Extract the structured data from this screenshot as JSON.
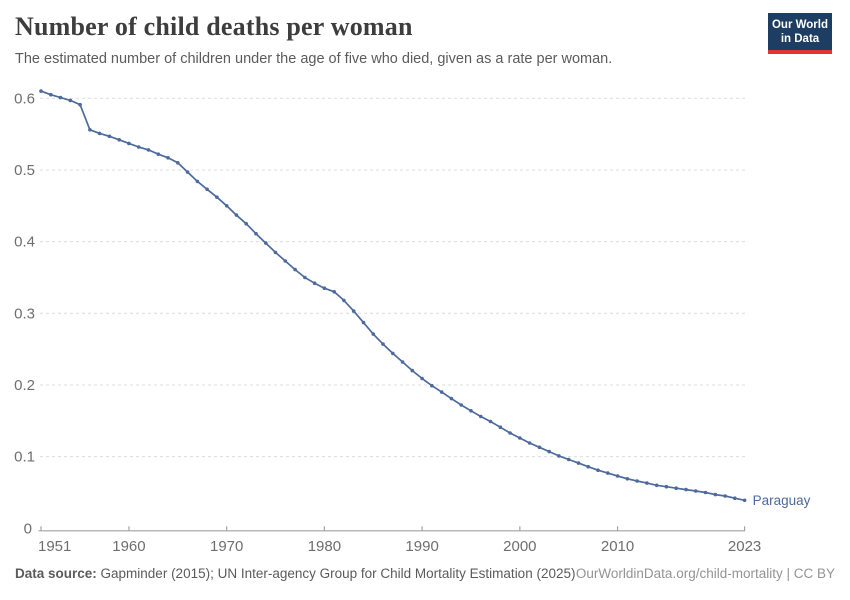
{
  "header": {
    "title": "Number of child deaths per woman",
    "subtitle": "The estimated number of children under the age of five who died, given as a rate per woman.",
    "logo": {
      "line1": "Our World",
      "line2": "in Data",
      "bg_color": "#1d3d63",
      "accent_color": "#e0362f"
    }
  },
  "chart_data": {
    "type": "line",
    "title": "Number of child deaths per woman",
    "xlabel": "",
    "ylabel": "",
    "xlim": [
      1951,
      2023
    ],
    "ylim": [
      0,
      0.6
    ],
    "x_ticks": [
      1951,
      1960,
      1970,
      1980,
      1990,
      2000,
      2010,
      2023
    ],
    "y_ticks": [
      0,
      0.1,
      0.2,
      0.3,
      0.4,
      0.5,
      0.6
    ],
    "y_tick_labels": [
      "0",
      "0.1",
      "0.2",
      "0.3",
      "0.4",
      "0.5",
      "0.6"
    ],
    "grid": "horizontal-dashed",
    "legend_position": "end-of-line-label",
    "series": [
      {
        "name": "Paraguay",
        "color": "#4c6a9d",
        "years": [
          1951,
          1952,
          1953,
          1954,
          1955,
          1956,
          1957,
          1958,
          1959,
          1960,
          1961,
          1962,
          1963,
          1964,
          1965,
          1966,
          1967,
          1968,
          1969,
          1970,
          1971,
          1972,
          1973,
          1974,
          1975,
          1976,
          1977,
          1978,
          1979,
          1980,
          1981,
          1982,
          1983,
          1984,
          1985,
          1986,
          1987,
          1988,
          1989,
          1990,
          1991,
          1992,
          1993,
          1994,
          1995,
          1996,
          1997,
          1998,
          1999,
          2000,
          2001,
          2002,
          2003,
          2004,
          2005,
          2006,
          2007,
          2008,
          2009,
          2010,
          2011,
          2012,
          2013,
          2014,
          2015,
          2016,
          2017,
          2018,
          2019,
          2020,
          2021,
          2022,
          2023
        ],
        "values": [
          0.61,
          0.605,
          0.601,
          0.597,
          0.591,
          0.556,
          0.551,
          0.547,
          0.542,
          0.537,
          0.532,
          0.528,
          0.522,
          0.517,
          0.51,
          0.497,
          0.484,
          0.473,
          0.462,
          0.45,
          0.437,
          0.425,
          0.411,
          0.398,
          0.385,
          0.373,
          0.361,
          0.35,
          0.342,
          0.335,
          0.33,
          0.318,
          0.303,
          0.287,
          0.271,
          0.257,
          0.244,
          0.232,
          0.22,
          0.209,
          0.199,
          0.19,
          0.181,
          0.172,
          0.164,
          0.156,
          0.149,
          0.141,
          0.133,
          0.126,
          0.119,
          0.113,
          0.107,
          0.101,
          0.096,
          0.091,
          0.086,
          0.081,
          0.077,
          0.073,
          0.069,
          0.066,
          0.063,
          0.06,
          0.058,
          0.056,
          0.054,
          0.052,
          0.05,
          0.047,
          0.045,
          0.042,
          0.039
        ]
      }
    ]
  },
  "footer": {
    "datasource_label": "Data source:",
    "datasource_text": " Gapminder (2015); UN Inter-agency Group for Child Mortality Estimation (2025)",
    "license_text": "OurWorldinData.org/child-mortality | CC BY"
  }
}
